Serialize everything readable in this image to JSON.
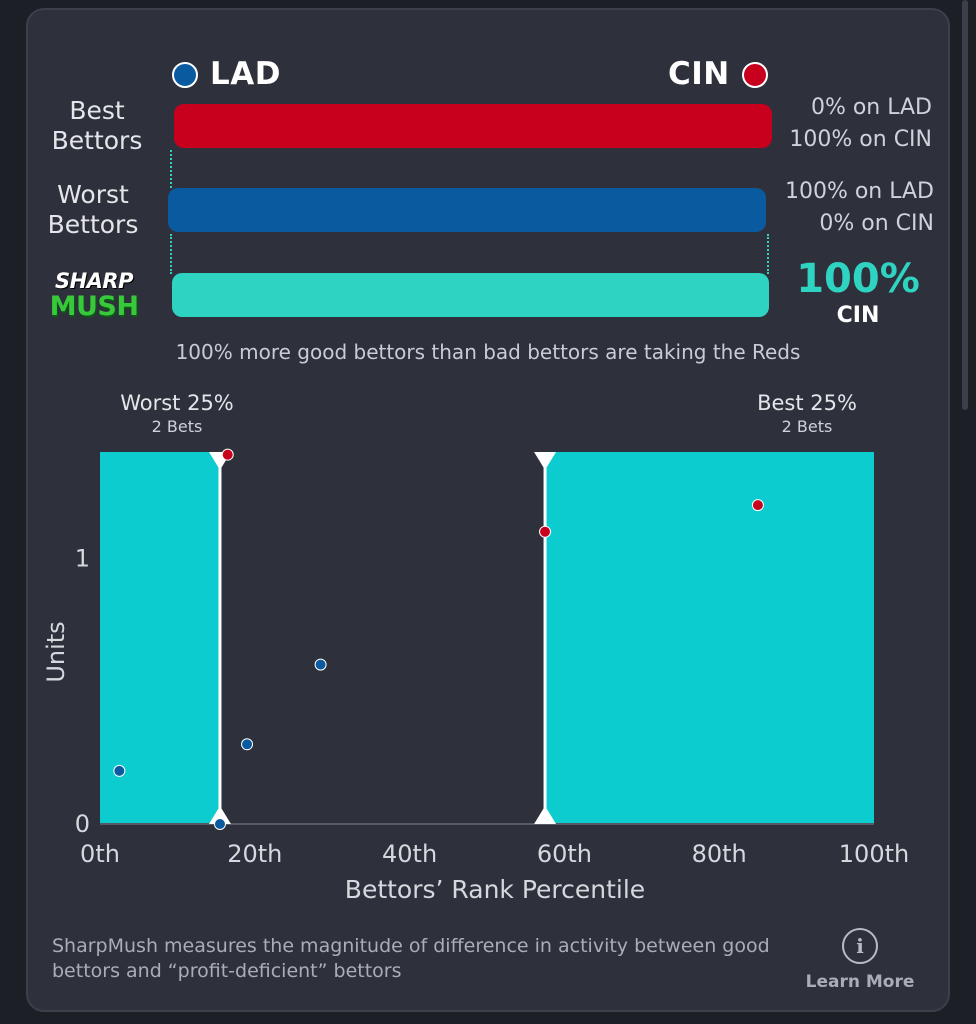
{
  "teams": {
    "left": {
      "abbr": "LAD",
      "color": "#0a5aa0"
    },
    "right": {
      "abbr": "CIN",
      "color": "#c8001e"
    }
  },
  "rows": [
    {
      "label_line1": "Best",
      "label_line2": "Bettors",
      "color": "#c8001e",
      "pct_line1": "0% on LAD",
      "pct_line2": "100% on CIN"
    },
    {
      "label_line1": "Worst",
      "label_line2": "Bettors",
      "color": "#0a5aa0",
      "pct_line1": "100% on LAD",
      "pct_line2": "0% on CIN"
    }
  ],
  "logo": {
    "line1": "SHARP",
    "line2": "MUSH"
  },
  "sharpmush": {
    "value": "100%",
    "team": "CIN",
    "color": "#2fd3c2"
  },
  "summary": "100% more good bettors than bad bettors are taking the Reds",
  "zones": {
    "worst": {
      "title": "Worst 25%",
      "subtitle": "2 Bets"
    },
    "best": {
      "title": "Best 25%",
      "subtitle": "2 Bets"
    }
  },
  "footer": {
    "text": "SharpMush measures the magnitude of difference in activity between good bettors and “profit-deficient” bettors",
    "learn_more": "Learn More",
    "info_icon": "info-icon"
  },
  "chart_data": {
    "type": "scatter",
    "xlabel": "Bettors’ Rank Percentile",
    "ylabel": "Units",
    "xlim": [
      0,
      100
    ],
    "ylim": [
      0,
      1.4
    ],
    "x_ticks": [
      0,
      20,
      40,
      60,
      80,
      100
    ],
    "x_tick_labels": [
      "0th",
      "20th",
      "40th",
      "60th",
      "80th",
      "100th"
    ],
    "y_ticks": [
      0,
      1
    ],
    "y_tick_labels": [
      "0",
      "1"
    ],
    "shaded_zones": [
      {
        "from": 0,
        "to": 15.5,
        "color": "#0ccccf"
      },
      {
        "from": 57.5,
        "to": 100,
        "color": "#0ccccf"
      }
    ],
    "thresholds": [
      15.5,
      57.5
    ],
    "series": [
      {
        "team": "LAD",
        "color": "#0a5aa0",
        "points": [
          [
            2.5,
            0.2
          ],
          [
            15.5,
            0
          ],
          [
            19,
            0.3
          ],
          [
            28.5,
            0.6
          ]
        ]
      },
      {
        "team": "CIN",
        "color": "#c8001e",
        "points": [
          [
            16.5,
            1.39
          ],
          [
            57.5,
            1.1
          ],
          [
            85,
            1.2
          ]
        ]
      }
    ],
    "grid": false,
    "legend": "none"
  }
}
